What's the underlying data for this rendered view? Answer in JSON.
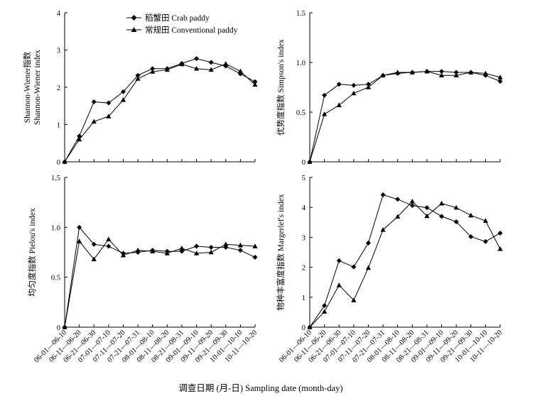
{
  "figure": {
    "xlabel": "调查日期 (月-日) Sampling date (month-day)"
  },
  "legend": [
    {
      "label": "稻蟹田 Crab paddy",
      "marker": "diamond"
    },
    {
      "label": "常规田 Conventional paddy",
      "marker": "triangle"
    }
  ],
  "chart_data": [
    {
      "type": "line",
      "panel": "top-left",
      "ylabel_lines": [
        "Shannon-Wiener指数",
        "Shannon-Wiener index"
      ],
      "ylim": [
        0,
        4
      ],
      "yticks": [
        "0",
        "1",
        "2",
        "3",
        "4"
      ],
      "categories": [
        "06-01—06-10",
        "06-11—06-20",
        "06-21—06-30",
        "07-01—07-10",
        "07-11—07-20",
        "07-21—07-31",
        "08-01—08-10",
        "08-11—08-20",
        "08-21—08-31",
        "09-01—09-10",
        "09-11—09-20",
        "09-21—09-30",
        "10-01—10-10",
        "10-11—10-20"
      ],
      "series": [
        {
          "name": "稻蟹田 Crab paddy",
          "marker": "diamond",
          "values": [
            0,
            0.69,
            1.61,
            1.58,
            1.88,
            2.32,
            2.5,
            2.5,
            2.64,
            2.77,
            2.67,
            2.57,
            2.36,
            2.15
          ]
        },
        {
          "name": "常规田 Conventional paddy",
          "marker": "triangle",
          "values": [
            0,
            0.6,
            1.08,
            1.22,
            1.66,
            2.23,
            2.42,
            2.47,
            2.62,
            2.5,
            2.47,
            2.63,
            2.43,
            2.07
          ]
        }
      ]
    },
    {
      "type": "line",
      "panel": "top-right",
      "ylabel_lines": [
        "优势度指数 Simpson's index"
      ],
      "ylim": [
        0,
        1.5
      ],
      "yticks": [
        "0",
        "0.5",
        "1.0",
        "1.5"
      ],
      "categories": [
        "06-01—06-10",
        "06-11—06-20",
        "06-21—06-30",
        "07-01—07-10",
        "07-11—07-20",
        "07-21—07-31",
        "08-01—08-10",
        "08-11—08-20",
        "08-21—08-31",
        "09-01—09-10",
        "09-11—09-20",
        "09-21—09-30",
        "10-01—10-10",
        "10-11—10-20"
      ],
      "series": [
        {
          "name": "稻蟹田 Crab paddy",
          "marker": "diamond",
          "values": [
            0,
            0.67,
            0.78,
            0.77,
            0.78,
            0.87,
            0.89,
            0.9,
            0.91,
            0.91,
            0.9,
            0.9,
            0.87,
            0.81
          ]
        },
        {
          "name": "常规田 Conventional paddy",
          "marker": "triangle",
          "values": [
            0,
            0.48,
            0.57,
            0.69,
            0.75,
            0.87,
            0.9,
            0.9,
            0.91,
            0.87,
            0.87,
            0.9,
            0.89,
            0.85
          ]
        }
      ]
    },
    {
      "type": "line",
      "panel": "bottom-left",
      "ylabel_lines": [
        "均匀度指数 Pielou's index"
      ],
      "ylim": [
        0,
        1.5
      ],
      "yticks": [
        "0",
        "0.5",
        "1.0",
        "1.5"
      ],
      "categories": [
        "06-01—06-10",
        "06-11—06-20",
        "06-21—06-30",
        "07-01—07-10",
        "07-11—07-20",
        "07-21—07-31",
        "08-01—08-10",
        "08-11—08-20",
        "08-21—08-31",
        "09-01—09-10",
        "09-11—09-20",
        "09-21—09-30",
        "10-01—10-10",
        "10-11—10-20"
      ],
      "series": [
        {
          "name": "稻蟹田 Crab paddy",
          "marker": "diamond",
          "values": [
            0,
            1.0,
            0.83,
            0.81,
            0.74,
            0.75,
            0.77,
            0.76,
            0.76,
            0.81,
            0.8,
            0.8,
            0.77,
            0.7
          ]
        },
        {
          "name": "常规田 Conventional paddy",
          "marker": "triangle",
          "values": [
            0,
            0.86,
            0.68,
            0.88,
            0.72,
            0.77,
            0.76,
            0.74,
            0.79,
            0.74,
            0.75,
            0.83,
            0.82,
            0.81
          ]
        }
      ]
    },
    {
      "type": "line",
      "panel": "bottom-right",
      "ylabel_lines": [
        "物种丰富度指数 Margerlef's index"
      ],
      "ylim": [
        0,
        5
      ],
      "yticks": [
        "0",
        "1",
        "2",
        "3",
        "4",
        "5"
      ],
      "categories": [
        "06-01—06-10",
        "06-11—06-20",
        "06-21—06-30",
        "07-01—07-10",
        "07-11—07-20",
        "07-21—07-31",
        "08-01—08-10",
        "08-11—08-20",
        "08-21—08-31",
        "09-01—09-10",
        "09-11—09-20",
        "09-21—09-30",
        "10-01—10-10",
        "10-11—10-20"
      ],
      "series": [
        {
          "name": "稻蟹田 Crab paddy",
          "marker": "diamond",
          "values": [
            0,
            0.72,
            2.22,
            2.01,
            2.81,
            4.42,
            4.27,
            4.06,
            3.99,
            3.7,
            3.52,
            3.02,
            2.86,
            3.14
          ]
        },
        {
          "name": "常规田 Conventional paddy",
          "marker": "triangle",
          "values": [
            0,
            0.52,
            1.4,
            0.9,
            1.98,
            3.25,
            3.69,
            4.2,
            3.71,
            4.13,
            3.99,
            3.73,
            3.55,
            2.61
          ]
        }
      ]
    }
  ]
}
